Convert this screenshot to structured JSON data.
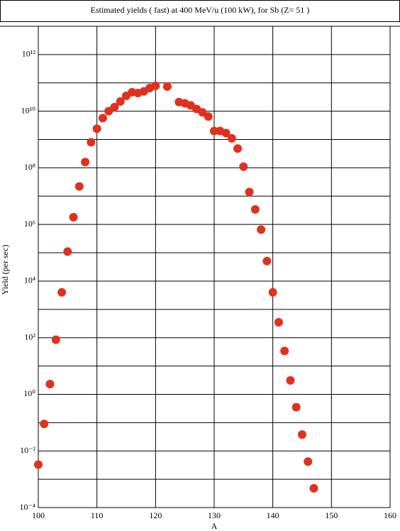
{
  "chart_data": {
    "type": "scatter",
    "title": "Estimated yields ( fast) at 400 MeV/u (100 kW), for Sb (Z= 51 )",
    "x_label": "A",
    "y_label": "Yield (per sec)",
    "log_y": true,
    "grid": true,
    "color": "#e0301e",
    "xlim": [
      100,
      160
    ],
    "xticks": [
      100,
      110,
      120,
      130,
      140,
      150,
      160
    ],
    "ylim": [
      0.0001,
      10000000000000
    ],
    "yticks": [
      {
        "value": 0.0001,
        "label": "10⁻⁴"
      },
      {
        "value": 0.01,
        "label": "10⁻²"
      },
      {
        "value": 1,
        "label": "10⁰"
      },
      {
        "value": 100,
        "label": "10²"
      },
      {
        "value": 10000,
        "label": "10⁴"
      },
      {
        "value": 1000000,
        "label": "10⁶"
      },
      {
        "value": 100000000,
        "label": "10⁸"
      },
      {
        "value": 10000000000,
        "label": "10¹⁰"
      },
      {
        "value": 1000000000000,
        "label": "10¹²"
      }
    ],
    "y_minor_ticks": [
      0.001,
      0.1,
      10,
      1000,
      100000,
      10000000,
      1000000000,
      100000000000,
      10000000000000
    ],
    "x": [
      100,
      101,
      102,
      103,
      104,
      105,
      106,
      107,
      108,
      109,
      110,
      111,
      112,
      113,
      114,
      115,
      116,
      117,
      118,
      119,
      120,
      122,
      124,
      125,
      126,
      127,
      128,
      129,
      130,
      131,
      132,
      133,
      134,
      135,
      136,
      137,
      138,
      139,
      140,
      141,
      142,
      143,
      144,
      145,
      146,
      147
    ],
    "values": [
      0.0033,
      0.09,
      2.3,
      85,
      4000,
      110000,
      1800000,
      22000000,
      160000000,
      800000000,
      2400000000,
      5700000000,
      10000000000,
      14000000000,
      22000000000,
      35000000000,
      47000000000,
      44000000000,
      50000000000,
      66000000000,
      79000000000,
      74000000000,
      21000000000,
      19000000000,
      16000000000,
      12000000000,
      9100000000,
      6500000000,
      2000000000,
      2000000000,
      1700000000,
      1100000000,
      480000000,
      110000000,
      14000000,
      3400000,
      660000,
      51000,
      4000,
      350,
      34,
      3.1,
      0.35,
      0.038,
      0.0042,
      0.00048
    ]
  }
}
